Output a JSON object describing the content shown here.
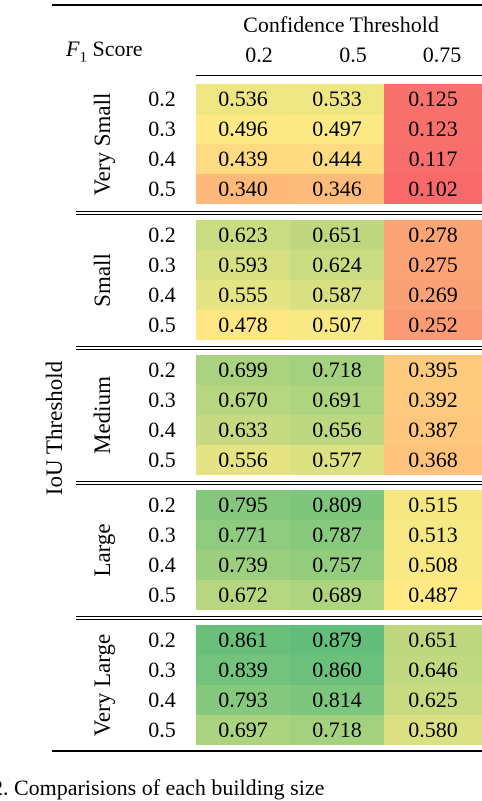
{
  "header": {
    "corner_prefix": "F",
    "corner_subscript": "1",
    "corner_suffix": "Score",
    "column_group_label": "Confidence Threshold",
    "row_axis_label": "IoU Threshold"
  },
  "caption_fragment": "2.   Comparisions of  each building size",
  "chart_data": {
    "type": "heatmap",
    "title": "",
    "xlabel": "Confidence Threshold",
    "ylabel": "IoU Threshold",
    "columns": [
      "0.2",
      "0.5",
      "0.75"
    ],
    "groups": [
      {
        "name": "Very Small",
        "rows": [
          {
            "iou": "0.2",
            "values": [
              "0.536",
              "0.533",
              "0.125"
            ]
          },
          {
            "iou": "0.3",
            "values": [
              "0.496",
              "0.497",
              "0.123"
            ]
          },
          {
            "iou": "0.4",
            "values": [
              "0.439",
              "0.444",
              "0.117"
            ]
          },
          {
            "iou": "0.5",
            "values": [
              "0.340",
              "0.346",
              "0.102"
            ]
          }
        ]
      },
      {
        "name": "Small",
        "rows": [
          {
            "iou": "0.2",
            "values": [
              "0.623",
              "0.651",
              "0.278"
            ]
          },
          {
            "iou": "0.3",
            "values": [
              "0.593",
              "0.624",
              "0.275"
            ]
          },
          {
            "iou": "0.4",
            "values": [
              "0.555",
              "0.587",
              "0.269"
            ]
          },
          {
            "iou": "0.5",
            "values": [
              "0.478",
              "0.507",
              "0.252"
            ]
          }
        ]
      },
      {
        "name": "Medium",
        "rows": [
          {
            "iou": "0.2",
            "values": [
              "0.699",
              "0.718",
              "0.395"
            ]
          },
          {
            "iou": "0.3",
            "values": [
              "0.670",
              "0.691",
              "0.392"
            ]
          },
          {
            "iou": "0.4",
            "values": [
              "0.633",
              "0.656",
              "0.387"
            ]
          },
          {
            "iou": "0.5",
            "values": [
              "0.556",
              "0.577",
              "0.368"
            ]
          }
        ]
      },
      {
        "name": "Large",
        "rows": [
          {
            "iou": "0.2",
            "values": [
              "0.795",
              "0.809",
              "0.515"
            ]
          },
          {
            "iou": "0.3",
            "values": [
              "0.771",
              "0.787",
              "0.513"
            ]
          },
          {
            "iou": "0.4",
            "values": [
              "0.739",
              "0.757",
              "0.508"
            ]
          },
          {
            "iou": "0.5",
            "values": [
              "0.672",
              "0.689",
              "0.487"
            ]
          }
        ]
      },
      {
        "name": "Very Large",
        "rows": [
          {
            "iou": "0.2",
            "values": [
              "0.861",
              "0.879",
              "0.651"
            ]
          },
          {
            "iou": "0.3",
            "values": [
              "0.839",
              "0.860",
              "0.646"
            ]
          },
          {
            "iou": "0.4",
            "values": [
              "0.793",
              "0.814",
              "0.625"
            ]
          },
          {
            "iou": "0.5",
            "values": [
              "0.697",
              "0.718",
              "0.580"
            ]
          }
        ]
      }
    ],
    "colormap": {
      "low": "#f8696b",
      "mid": "#ffeb84",
      "high": "#63be7b",
      "min_value": 0.102,
      "max_value": 0.879
    }
  }
}
